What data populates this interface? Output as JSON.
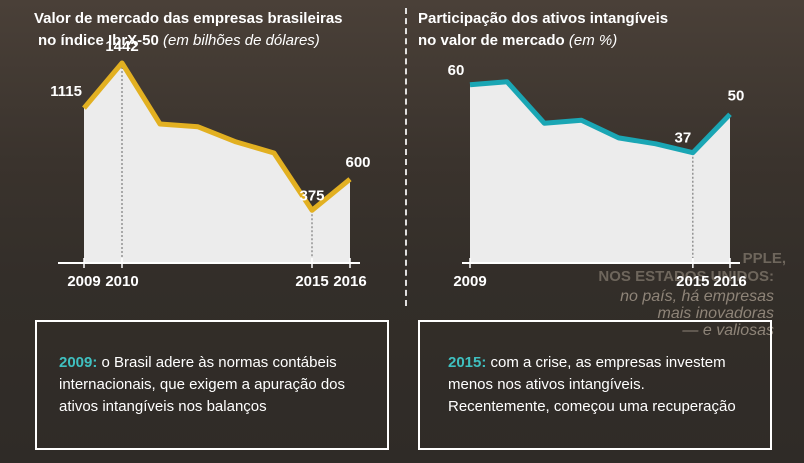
{
  "left": {
    "title_line1": "Valor de mercado das empresas brasileiras",
    "title_line2": "no índice IbrX-50",
    "title_unit": "(em bilhões de dólares)",
    "note": {
      "year": "2009:",
      "text": "o Brasil adere às normas contábeis internacionais, que exigem a apuração dos ativos intangíveis nos balanços"
    }
  },
  "right": {
    "title_line1": "Participação dos ativos intangíveis",
    "title_line2": "no valor de mercado",
    "title_unit": "(em %)",
    "note": {
      "year": "2015:",
      "text": "com a crise, as empresas investem menos nos ativos intangíveis. Recentemente, começou uma recuperação"
    }
  },
  "background_text": [
    "PPLE,",
    "NOS ESTADOS UNIDOS:",
    "no país, há empresas",
    "mais inovadoras",
    "— e valiosas"
  ],
  "colors": {
    "line_left": "#e2b021",
    "line_right": "#1aa6b4",
    "area": "#ececec",
    "accent_text": "#3fc0c0"
  },
  "chart_data": [
    {
      "type": "area",
      "x": [
        2009,
        2010,
        2011,
        2012,
        2013,
        2014,
        2015,
        2016
      ],
      "values": [
        1115,
        1442,
        1000,
        980,
        870,
        790,
        375,
        600
      ],
      "labels": {
        "2009": "1115",
        "2010": "1442",
        "2015": "375",
        "2016": "600"
      },
      "x_tick_labels": [
        "2009",
        "2010",
        "2015",
        "2016"
      ],
      "ylim": [
        0,
        1500
      ]
    },
    {
      "type": "area",
      "x": [
        2009,
        2010,
        2011,
        2012,
        2013,
        2014,
        2015,
        2016
      ],
      "values": [
        60,
        61,
        47,
        48,
        42,
        40,
        37,
        50
      ],
      "labels": {
        "2009": "60",
        "2015": "37",
        "2016": "50"
      },
      "x_tick_labels": [
        "2009",
        "2015",
        "2016"
      ],
      "ylim": [
        0,
        65
      ]
    }
  ]
}
